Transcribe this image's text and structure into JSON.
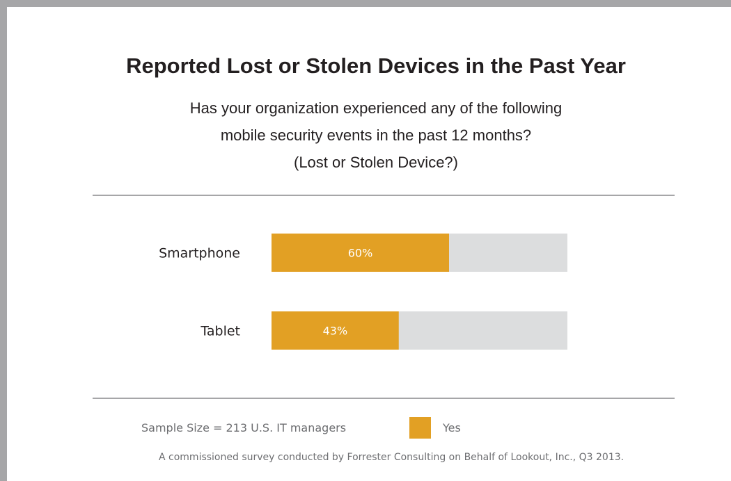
{
  "chart_data": {
    "type": "bar",
    "orientation": "horizontal",
    "stacked_to_total": true,
    "title": "Reported Lost or Stolen Devices in the Past Year",
    "subtitle_lines": [
      "Has your organization experienced any of the following",
      "mobile security events in the past 12 months?",
      "(Lost or Stolen Device?)"
    ],
    "categories": [
      "Smartphone",
      "Tablet"
    ],
    "series": [
      {
        "name": "Yes",
        "values": [
          60,
          43
        ],
        "color": "#e2a024"
      }
    ],
    "data_labels": [
      "60%",
      "43%"
    ],
    "remainder_color": "#dcddde",
    "xlim": [
      0,
      100
    ],
    "legend_position": "bottom"
  },
  "footer": {
    "sample_size": "Sample Size = 213 U.S. IT managers",
    "legend_label": "Yes",
    "source": "A commissioned survey conducted by Forrester Consulting on Behalf of Lookout, Inc., Q3 2013."
  }
}
